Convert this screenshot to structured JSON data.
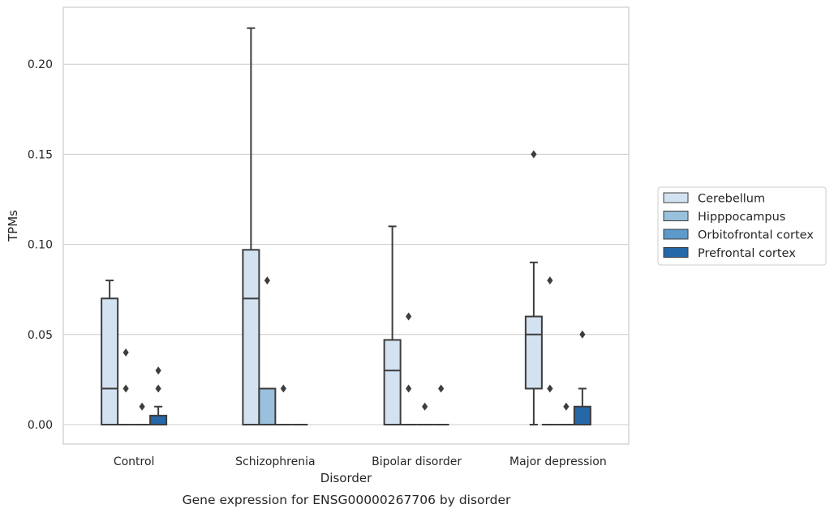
{
  "chart_data": {
    "type": "box",
    "xlabel": "Disorder",
    "ylabel": "TPMs",
    "caption": "Gene expression for ENSG00000267706 by disorder",
    "categories": [
      "Control",
      "Schizophrenia",
      "Bipolar disorder",
      "Major depression"
    ],
    "ylim": [
      -0.011,
      0.231
    ],
    "yticks": [
      0.0,
      0.05,
      0.1,
      0.15,
      0.2
    ],
    "ytick_labels": [
      "0.00",
      "0.05",
      "0.10",
      "0.15",
      "0.20"
    ],
    "grid": "horizontal",
    "legend": {
      "placement": "right",
      "entries": [
        "Cerebellum",
        "Hipppocampus",
        "Orbitofrontal cortex",
        "Prefrontal cortex"
      ]
    },
    "series": [
      {
        "name": "Cerebellum",
        "color": "#d3e2f1",
        "boxes": [
          {
            "whislo": 0.0,
            "q1": 0.0,
            "med": 0.02,
            "q3": 0.07,
            "whishi": 0.08,
            "fliers": []
          },
          {
            "whislo": 0.0,
            "q1": 0.0,
            "med": 0.07,
            "q3": 0.097,
            "whishi": 0.22,
            "fliers": []
          },
          {
            "whislo": 0.0,
            "q1": 0.0,
            "med": 0.03,
            "q3": 0.047,
            "whishi": 0.11,
            "fliers": []
          },
          {
            "whislo": 0.0,
            "q1": 0.02,
            "med": 0.05,
            "q3": 0.06,
            "whishi": 0.09,
            "fliers": [
              0.15
            ]
          }
        ]
      },
      {
        "name": "Hipppocampus",
        "color": "#99c0dc",
        "boxes": [
          {
            "whislo": 0.0,
            "q1": 0.0,
            "med": 0.0,
            "q3": 0.0,
            "whishi": 0.0,
            "fliers": [
              0.04,
              0.02
            ]
          },
          {
            "whislo": 0.0,
            "q1": 0.0,
            "med": 0.0,
            "q3": 0.02,
            "whishi": 0.02,
            "fliers": [
              0.08
            ]
          },
          {
            "whislo": 0.0,
            "q1": 0.0,
            "med": 0.0,
            "q3": 0.0,
            "whishi": 0.0,
            "fliers": [
              0.06,
              0.02
            ]
          },
          {
            "whislo": 0.0,
            "q1": 0.0,
            "med": 0.0,
            "q3": 0.0,
            "whishi": 0.0,
            "fliers": [
              0.08,
              0.02
            ]
          }
        ]
      },
      {
        "name": "Orbitofrontal cortex",
        "color": "#5c9bc9",
        "boxes": [
          {
            "whislo": 0.0,
            "q1": 0.0,
            "med": 0.0,
            "q3": 0.0,
            "whishi": 0.0,
            "fliers": [
              0.01
            ]
          },
          {
            "whislo": 0.0,
            "q1": 0.0,
            "med": 0.0,
            "q3": 0.0,
            "whishi": 0.0,
            "fliers": [
              0.02
            ]
          },
          {
            "whislo": 0.0,
            "q1": 0.0,
            "med": 0.0,
            "q3": 0.0,
            "whishi": 0.0,
            "fliers": [
              0.01
            ]
          },
          {
            "whislo": 0.0,
            "q1": 0.0,
            "med": 0.0,
            "q3": 0.0,
            "whishi": 0.0,
            "fliers": [
              0.01
            ]
          }
        ]
      },
      {
        "name": "Prefrontal cortex",
        "color": "#2667a8",
        "boxes": [
          {
            "whislo": 0.0,
            "q1": 0.0,
            "med": 0.0,
            "q3": 0.005,
            "whishi": 0.01,
            "fliers": [
              0.03,
              0.02
            ]
          },
          {
            "whislo": 0.0,
            "q1": 0.0,
            "med": 0.0,
            "q3": 0.0,
            "whishi": 0.0,
            "fliers": []
          },
          {
            "whislo": 0.0,
            "q1": 0.0,
            "med": 0.0,
            "q3": 0.0,
            "whishi": 0.0,
            "fliers": [
              0.02
            ]
          },
          {
            "whislo": 0.0,
            "q1": 0.0,
            "med": 0.0,
            "q3": 0.01,
            "whishi": 0.02,
            "fliers": [
              0.05
            ]
          }
        ]
      }
    ]
  }
}
